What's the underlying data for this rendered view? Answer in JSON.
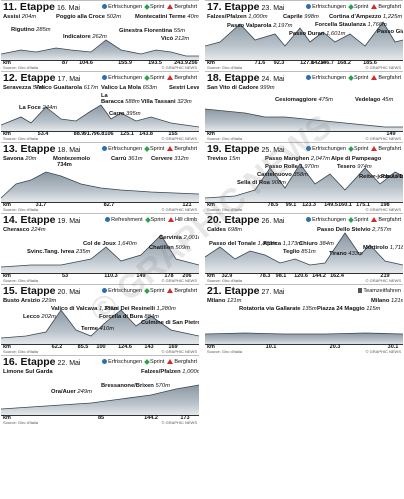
{
  "panels": [
    {
      "stage": "11. Etappe",
      "date": "16. Mai",
      "legend": [
        "Erfrischungen",
        "Sprint",
        "Bergfahrt"
      ],
      "labels": [
        {
          "text": "Assisi",
          "alt": "204m",
          "x": 2,
          "y": 13
        },
        {
          "text": "Poggio alla Croce",
          "alt": "502m",
          "x": 55,
          "y": 13
        },
        {
          "text": "Montecatini Terme",
          "alt": "40m",
          "x": 134,
          "y": 13
        },
        {
          "text": "Rigutino",
          "alt": "285m",
          "x": 10,
          "y": 26
        },
        {
          "text": "Indicatore",
          "alt": "262m",
          "x": 62,
          "y": 33
        },
        {
          "text": "Ginestra Fiorentina",
          "alt": "55m",
          "x": 118,
          "y": 27
        },
        {
          "text": "Vicò",
          "alt": "212m",
          "x": 160,
          "y": 35
        }
      ],
      "profile": [
        [
          0,
          42
        ],
        [
          20,
          38
        ],
        [
          35,
          40
        ],
        [
          55,
          36
        ],
        [
          70,
          38
        ],
        [
          90,
          40
        ],
        [
          105,
          28
        ],
        [
          120,
          38
        ],
        [
          140,
          42
        ],
        [
          155,
          38
        ],
        [
          170,
          40
        ],
        [
          185,
          44
        ],
        [
          198,
          44
        ]
      ],
      "ticks": [
        "87",
        "104.6",
        "155.9",
        "193.5",
        "243.9",
        "256"
      ],
      "tickx": [
        64,
        85,
        124,
        154,
        180,
        192
      ]
    },
    {
      "stage": "17. Etappe",
      "date": "23. Mai",
      "legend": [
        "Erfrischungen",
        "Sprint",
        "Bergfahrt"
      ],
      "labels": [
        {
          "text": "Falzes/Pfalzen",
          "alt": "1,000m",
          "x": 2,
          "y": 13
        },
        {
          "text": "Caprile",
          "alt": "998m",
          "x": 78,
          "y": 13
        },
        {
          "text": "Cortina d'Ampezzo",
          "alt": "1,225m",
          "x": 124,
          "y": 13
        },
        {
          "text": "Passo Valparola",
          "alt": "2,197m",
          "x": 22,
          "y": 22
        },
        {
          "text": "Forcella Staulanza",
          "alt": "1,766m",
          "x": 110,
          "y": 21
        },
        {
          "text": "Passo Duran",
          "alt": "1,601m",
          "x": 84,
          "y": 30
        },
        {
          "text": "Passo Giau",
          "alt": "2,236m",
          "x": 172,
          "y": 28
        }
      ],
      "profile": [
        [
          0,
          34
        ],
        [
          15,
          30
        ],
        [
          35,
          12
        ],
        [
          50,
          28
        ],
        [
          70,
          22
        ],
        [
          80,
          34
        ],
        [
          95,
          16
        ],
        [
          105,
          30
        ],
        [
          118,
          20
        ],
        [
          130,
          30
        ],
        [
          145,
          22
        ],
        [
          160,
          34
        ],
        [
          178,
          10
        ],
        [
          190,
          30
        ],
        [
          198,
          28
        ]
      ],
      "ticks": [
        "71.6",
        "92.3",
        "127.8",
        "142.4",
        "146.7",
        "168.2",
        "185.6"
      ],
      "tickx": [
        55,
        74,
        102,
        113,
        122,
        139,
        165
      ]
    },
    {
      "stage": "12. Etappe",
      "date": "17. Mai",
      "legend": [
        "Erfrischungen",
        "Sprint",
        "Bergfahrt"
      ],
      "labels": [
        {
          "text": "Seravezza",
          "alt": "57m",
          "x": 2,
          "y": 13
        },
        {
          "text": "Valico Guaitarola",
          "alt": "617m",
          "x": 34,
          "y": 13
        },
        {
          "text": "Valico La Mola",
          "alt": "653m",
          "x": 100,
          "y": 13
        },
        {
          "text": "Sestri Levante",
          "alt": "3m",
          "x": 168,
          "y": 13
        },
        {
          "text": "La",
          "alt": "",
          "x": 100,
          "y": 21
        },
        {
          "text": "Baracca",
          "alt": "588m",
          "x": 100,
          "y": 27
        },
        {
          "text": "Villa Tassani",
          "alt": "323m",
          "x": 140,
          "y": 27
        },
        {
          "text": "La Foce",
          "alt": "244m",
          "x": 18,
          "y": 33
        },
        {
          "text": "Carro",
          "alt": "395m",
          "x": 108,
          "y": 39
        }
      ],
      "profile": [
        [
          0,
          42
        ],
        [
          20,
          34
        ],
        [
          30,
          40
        ],
        [
          45,
          24
        ],
        [
          60,
          36
        ],
        [
          75,
          38
        ],
        [
          90,
          28
        ],
        [
          100,
          22
        ],
        [
          110,
          36
        ],
        [
          120,
          30
        ],
        [
          135,
          38
        ],
        [
          150,
          34
        ],
        [
          170,
          40
        ],
        [
          198,
          44
        ]
      ],
      "ticks": [
        "53.4",
        "88.9",
        "91.7",
        "96.8",
        "106",
        "125.1",
        "143.8",
        "155"
      ],
      "tickx": [
        42,
        78,
        88,
        98,
        108,
        126,
        145,
        172
      ]
    },
    {
      "stage": "18. Etappe",
      "date": "24. Mai",
      "legend": [
        "Erfrischungen",
        "Sprint",
        "Bergfahrt"
      ],
      "labels": [
        {
          "text": "San Vito di Cadore",
          "alt": "999m",
          "x": 2,
          "y": 13
        },
        {
          "text": "Cesiomaggiore",
          "alt": "475m",
          "x": 70,
          "y": 25
        },
        {
          "text": "Vedelago",
          "alt": "45m",
          "x": 150,
          "y": 25
        }
      ],
      "profile": [
        [
          0,
          26
        ],
        [
          20,
          28
        ],
        [
          40,
          30
        ],
        [
          60,
          34
        ],
        [
          80,
          34
        ],
        [
          100,
          36
        ],
        [
          120,
          38
        ],
        [
          140,
          40
        ],
        [
          160,
          42
        ],
        [
          180,
          44
        ],
        [
          198,
          44
        ]
      ],
      "ticks": [
        "149"
      ],
      "tickx": [
        186
      ]
    },
    {
      "stage": "13. Etappe",
      "date": "18. Mai",
      "legend": [
        "Erfrischungen",
        "Sprint",
        "Bergfahrt"
      ],
      "labels": [
        {
          "text": "Savona",
          "alt": "20m",
          "x": 2,
          "y": 13
        },
        {
          "text": "Montezemolo",
          "alt": "",
          "x": 52,
          "y": 13
        },
        {
          "text": "734m",
          "alt": "",
          "x": 56,
          "y": 19
        },
        {
          "text": "Carrù",
          "alt": "361m",
          "x": 110,
          "y": 13
        },
        {
          "text": "Cervere",
          "alt": "312m",
          "x": 150,
          "y": 13
        }
      ],
      "profile": [
        [
          0,
          44
        ],
        [
          15,
          30
        ],
        [
          30,
          26
        ],
        [
          45,
          18
        ],
        [
          60,
          22
        ],
        [
          80,
          30
        ],
        [
          100,
          34
        ],
        [
          120,
          36
        ],
        [
          150,
          38
        ],
        [
          198,
          40
        ]
      ],
      "ticks": [
        "31.7",
        "82.7",
        "121"
      ],
      "tickx": [
        40,
        108,
        186
      ]
    },
    {
      "stage": "19. Etappe",
      "date": "25. Mai",
      "legend": [
        "Erfrischungen",
        "Sprint",
        "Bergfahrt"
      ],
      "labels": [
        {
          "text": "Treviso",
          "alt": "15m",
          "x": 2,
          "y": 13
        },
        {
          "text": "Passo Manghen",
          "alt": "2,047m",
          "x": 60,
          "y": 13
        },
        {
          "text": "Alpe di Pampeago",
          "alt": "",
          "x": 126,
          "y": 13
        },
        {
          "text": "Passo Rolle",
          "alt": "1,970m",
          "x": 60,
          "y": 21
        },
        {
          "text": "Tesero",
          "alt": "974m",
          "x": 132,
          "y": 21
        },
        {
          "text": "Castelnuovo",
          "alt": "358m",
          "x": 52,
          "y": 29
        },
        {
          "text": "Sella di Roa",
          "alt": "908m",
          "x": 32,
          "y": 37
        },
        {
          "text": "Reiter-joch",
          "alt": "2,000m",
          "x": 154,
          "y": 31
        },
        {
          "text": "Passo Lavaze",
          "alt": "1,805m",
          "x": 176,
          "y": 31
        }
      ],
      "profile": [
        [
          0,
          44
        ],
        [
          30,
          42
        ],
        [
          50,
          36
        ],
        [
          65,
          14
        ],
        [
          80,
          34
        ],
        [
          95,
          10
        ],
        [
          110,
          30
        ],
        [
          125,
          20
        ],
        [
          140,
          36
        ],
        [
          160,
          14
        ],
        [
          175,
          30
        ],
        [
          190,
          18
        ],
        [
          198,
          22
        ]
      ],
      "ticks": [
        "78.5",
        "99.1",
        "123.3",
        "149.5",
        "160.1",
        "175.1",
        "198"
      ],
      "tickx": [
        68,
        86,
        104,
        126,
        140,
        158,
        180
      ]
    },
    {
      "stage": "14. Etappe",
      "date": "19. Mai",
      "legend": [
        "Refreshment",
        "Sprint",
        "Hill climb"
      ],
      "labels": [
        {
          "text": "Cherasco",
          "alt": "224m",
          "x": 2,
          "y": 13
        },
        {
          "text": "Cervinia",
          "alt": "2,001m",
          "x": 158,
          "y": 21
        },
        {
          "text": "Col de Joux",
          "alt": "1,640m",
          "x": 82,
          "y": 27
        },
        {
          "text": "Chatillon",
          "alt": "509m",
          "x": 148,
          "y": 31
        },
        {
          "text": "Svinc.Tang. Ivrea",
          "alt": "235m",
          "x": 26,
          "y": 35
        }
      ],
      "profile": [
        [
          0,
          42
        ],
        [
          30,
          40
        ],
        [
          60,
          40
        ],
        [
          90,
          34
        ],
        [
          105,
          22
        ],
        [
          120,
          36
        ],
        [
          140,
          30
        ],
        [
          160,
          10
        ],
        [
          175,
          34
        ],
        [
          198,
          40
        ]
      ],
      "ticks": [
        "53",
        "110.3",
        "149",
        "178",
        "206"
      ],
      "tickx": [
        64,
        110,
        140,
        168,
        186
      ]
    },
    {
      "stage": "20. Etappe",
      "date": "26. Mai",
      "legend": [
        "Erfrischungen",
        "Sprint",
        "Bergfahrt"
      ],
      "labels": [
        {
          "text": "Caldes",
          "alt": "698m",
          "x": 2,
          "y": 13
        },
        {
          "text": "Passo Dello Stelvio",
          "alt": "2,757m",
          "x": 112,
          "y": 13
        },
        {
          "text": "Passo del Tonale",
          "alt": "1,883m",
          "x": 4,
          "y": 27
        },
        {
          "text": "Aprica",
          "alt": "1,173m",
          "x": 58,
          "y": 27
        },
        {
          "text": "Chiuro",
          "alt": "384m",
          "x": 94,
          "y": 27
        },
        {
          "text": "Teglio",
          "alt": "851m",
          "x": 78,
          "y": 35
        },
        {
          "text": "Mortirolo",
          "alt": "1,718m",
          "x": 158,
          "y": 31
        },
        {
          "text": "Tirano",
          "alt": "433m",
          "x": 124,
          "y": 37
        }
      ],
      "profile": [
        [
          0,
          32
        ],
        [
          15,
          22
        ],
        [
          30,
          34
        ],
        [
          45,
          26
        ],
        [
          60,
          30
        ],
        [
          75,
          38
        ],
        [
          90,
          34
        ],
        [
          105,
          40
        ],
        [
          120,
          38
        ],
        [
          140,
          8
        ],
        [
          155,
          30
        ],
        [
          165,
          20
        ],
        [
          180,
          36
        ],
        [
          198,
          40
        ]
      ],
      "ticks": [
        "32.9",
        "78.3",
        "98.1",
        "120.6",
        "144.2",
        "162.4",
        "219"
      ],
      "tickx": [
        22,
        60,
        76,
        96,
        114,
        132,
        180
      ]
    },
    {
      "stage": "15. Etappe",
      "date": "20. Mai",
      "legend": [
        "Erfrischungen",
        "Sprint",
        "Bergfahrt"
      ],
      "labels": [
        {
          "text": "Busto Arsizio",
          "alt": "229m",
          "x": 2,
          "y": 13
        },
        {
          "text": "Valico di Valcava",
          "alt": "1,336m",
          "x": 50,
          "y": 21
        },
        {
          "text": "Piani Dei Resinelli",
          "alt": "1,280m",
          "x": 104,
          "y": 21
        },
        {
          "text": "Lecco",
          "alt": "202m",
          "x": 22,
          "y": 29
        },
        {
          "text": "Forcella di Bura",
          "alt": "884m",
          "x": 98,
          "y": 29
        },
        {
          "text": "Culmine di San Pietro",
          "alt": "1,254m",
          "x": 140,
          "y": 35
        },
        {
          "text": "Terme",
          "alt": "410m",
          "x": 80,
          "y": 41
        }
      ],
      "profile": [
        [
          0,
          42
        ],
        [
          25,
          40
        ],
        [
          45,
          36
        ],
        [
          60,
          14
        ],
        [
          75,
          34
        ],
        [
          90,
          40
        ],
        [
          105,
          26
        ],
        [
          120,
          14
        ],
        [
          135,
          30
        ],
        [
          150,
          20
        ],
        [
          170,
          34
        ],
        [
          198,
          40
        ]
      ],
      "ticks": [
        "62.2",
        "85.5",
        "100",
        "124.6",
        "143",
        "169"
      ],
      "tickx": [
        56,
        82,
        100,
        124,
        148,
        172
      ]
    },
    {
      "stage": "21. Etappe",
      "date": "27. Mai",
      "legend": [
        "Teamzeitfahren"
      ],
      "labels": [
        {
          "text": "Milano",
          "alt": "121m",
          "x": 2,
          "y": 13
        },
        {
          "text": "Milano",
          "alt": "121m",
          "x": 166,
          "y": 13
        },
        {
          "text": "Rotatoria via Gallarate",
          "alt": "135m",
          "x": 34,
          "y": 21
        },
        {
          "text": "Piazza 24 Maggio",
          "alt": "115m",
          "x": 112,
          "y": 21
        }
      ],
      "profile": [
        [
          0,
          38
        ],
        [
          40,
          37
        ],
        [
          80,
          38
        ],
        [
          120,
          38
        ],
        [
          160,
          37
        ],
        [
          198,
          38
        ]
      ],
      "ticks": [
        "10.1",
        "20.3",
        "30.1"
      ],
      "tickx": [
        66,
        130,
        188
      ]
    },
    {
      "stage": "16. Etappe",
      "date": "22. Mai",
      "legend": [
        "Erfrischungen",
        "Sprint",
        "Bergfahrt"
      ],
      "labels": [
        {
          "text": "Limone Sul Garda",
          "alt": "",
          "x": 2,
          "y": 13
        },
        {
          "text": "Falzes/Pfalzen",
          "alt": "1,000m",
          "x": 140,
          "y": 13
        },
        {
          "text": "Bressanone/Brixen",
          "alt": "570m",
          "x": 100,
          "y": 27
        },
        {
          "text": "Ora/Auer",
          "alt": "249m",
          "x": 50,
          "y": 33
        }
      ],
      "profile": [
        [
          0,
          42
        ],
        [
          30,
          40
        ],
        [
          60,
          38
        ],
        [
          90,
          36
        ],
        [
          120,
          32
        ],
        [
          150,
          28
        ],
        [
          175,
          22
        ],
        [
          198,
          18
        ]
      ],
      "ticks": [
        "85",
        "144.2",
        "173"
      ],
      "tickx": [
        100,
        150,
        184
      ]
    }
  ],
  "source": "Source: Giro d'Italia",
  "credit": "© GRAPHIC NEWS",
  "km_label": "km",
  "watermark": "© GRAPHIC NEWS"
}
